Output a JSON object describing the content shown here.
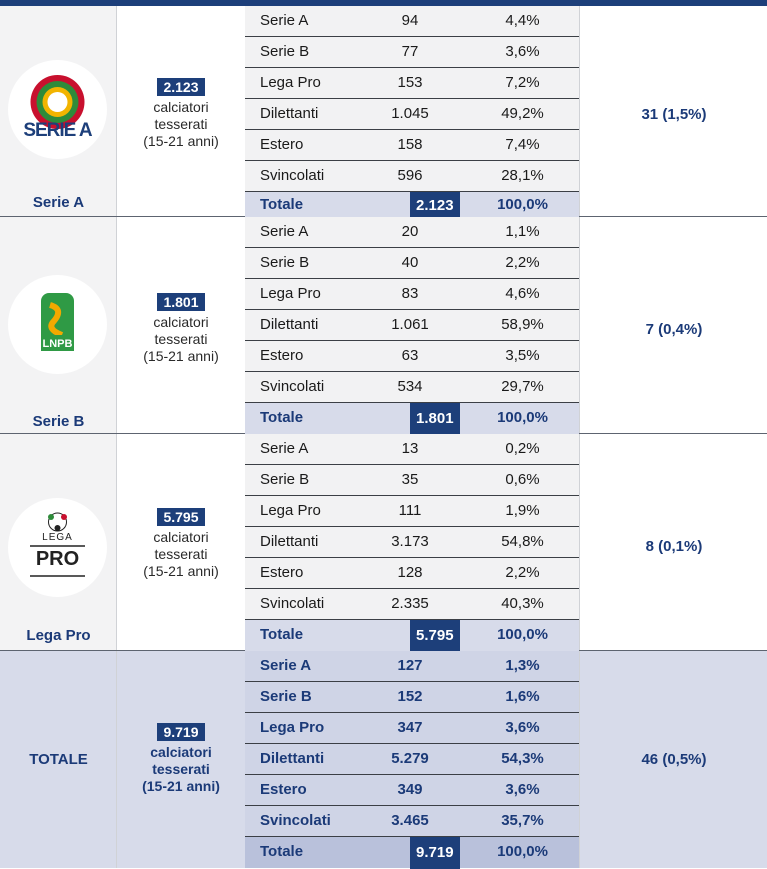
{
  "blocks": [
    {
      "league": "Serie A",
      "count_num": "2.123",
      "count_lines": [
        "calciatori",
        "tesserati",
        "(15-21 anni)"
      ],
      "percent_summary": "31 (1,5%)",
      "rows": [
        {
          "name": "Serie A",
          "num": "94",
          "pct": "4,4%"
        },
        {
          "name": "Serie B",
          "num": "77",
          "pct": "3,6%"
        },
        {
          "name": "Lega Pro",
          "num": "153",
          "pct": "7,2%"
        },
        {
          "name": "Dilettanti",
          "num": "1.045",
          "pct": "49,2%"
        },
        {
          "name": "Estero",
          "num": "158",
          "pct": "7,4%"
        },
        {
          "name": "Svincolati",
          "num": "596",
          "pct": "28,1%"
        }
      ],
      "total": {
        "name": "Totale",
        "num": "2.123",
        "pct": "100,0%"
      },
      "logo_text": "SERIE A"
    },
    {
      "league": "Serie B",
      "count_num": "1.801",
      "count_lines": [
        "calciatori",
        "tesserati",
        "(15-21 anni)"
      ],
      "percent_summary": "7 (0,4%)",
      "rows": [
        {
          "name": "Serie A",
          "num": "20",
          "pct": "1,1%"
        },
        {
          "name": "Serie B",
          "num": "40",
          "pct": "2,2%"
        },
        {
          "name": "Lega Pro",
          "num": "83",
          "pct": "4,6%"
        },
        {
          "name": "Dilettanti",
          "num": "1.061",
          "pct": "58,9%"
        },
        {
          "name": "Estero",
          "num": "63",
          "pct": "3,5%"
        },
        {
          "name": "Svincolati",
          "num": "534",
          "pct": "29,7%"
        }
      ],
      "total": {
        "name": "Totale",
        "num": "1.801",
        "pct": "100,0%"
      },
      "logo_text": "LNPB"
    },
    {
      "league": "Lega Pro",
      "count_num": "5.795",
      "count_lines": [
        "calciatori",
        "tesserati",
        "(15-21 anni)"
      ],
      "percent_summary": "8 (0,1%)",
      "rows": [
        {
          "name": "Serie A",
          "num": "13",
          "pct": "0,2%"
        },
        {
          "name": "Serie B",
          "num": "35",
          "pct": "0,6%"
        },
        {
          "name": "Lega Pro",
          "num": "111",
          "pct": "1,9%"
        },
        {
          "name": "Dilettanti",
          "num": "3.173",
          "pct": "54,8%"
        },
        {
          "name": "Estero",
          "num": "128",
          "pct": "2,2%"
        },
        {
          "name": "Svincolati",
          "num": "2.335",
          "pct": "40,3%"
        }
      ],
      "total": {
        "name": "Totale",
        "num": "5.795",
        "pct": "100,0%"
      },
      "logo_text_top": "LEGA",
      "logo_text_bottom": "PRO"
    },
    {
      "league": "TOTALE",
      "count_num": "9.719",
      "count_lines": [
        "calciatori",
        "tesserati",
        "(15-21 anni)"
      ],
      "percent_summary": "46 (0,5%)",
      "rows": [
        {
          "name": "Serie A",
          "num": "127",
          "pct": "1,3%"
        },
        {
          "name": "Serie B",
          "num": "152",
          "pct": "1,6%"
        },
        {
          "name": "Lega Pro",
          "num": "347",
          "pct": "3,6%"
        },
        {
          "name": "Dilettanti",
          "num": "5.279",
          "pct": "54,3%"
        },
        {
          "name": "Estero",
          "num": "349",
          "pct": "3,6%"
        },
        {
          "name": "Svincolati",
          "num": "3.465",
          "pct": "35,7%"
        }
      ],
      "total": {
        "name": "Totale",
        "num": "9.719",
        "pct": "100,0%"
      }
    }
  ]
}
